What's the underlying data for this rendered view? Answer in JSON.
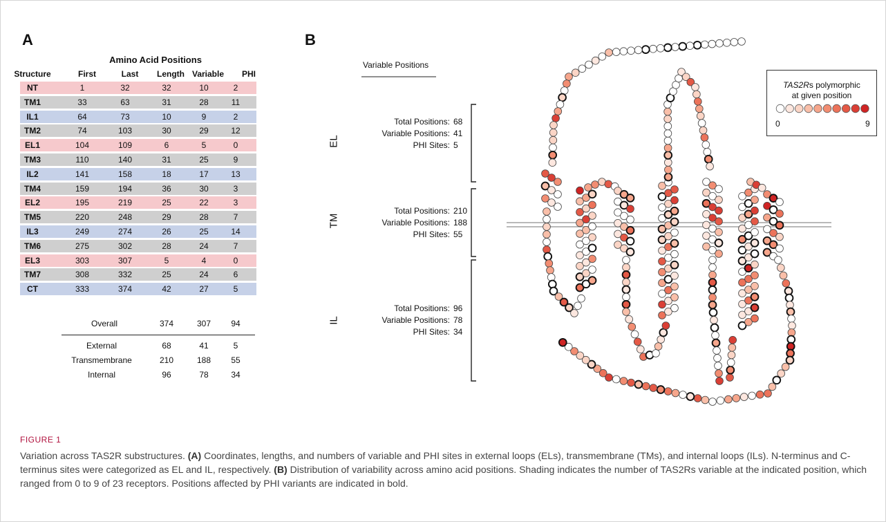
{
  "figure": {
    "panel_a_letter": "A",
    "panel_b_letter": "B"
  },
  "table": {
    "title": "Amino Acid Positions",
    "headers": [
      "Structure",
      "First",
      "Last",
      "Length",
      "Variable",
      "PHI"
    ],
    "rows": [
      {
        "structure": "NT",
        "first": "1",
        "last": "32",
        "length": "32",
        "variable": "10",
        "phi": "2",
        "color": "#f6c9cc"
      },
      {
        "structure": "TM1",
        "first": "33",
        "last": "63",
        "length": "31",
        "variable": "28",
        "phi": "11",
        "color": "#cfcfcf"
      },
      {
        "structure": "IL1",
        "first": "64",
        "last": "73",
        "length": "10",
        "variable": "9",
        "phi": "2",
        "color": "#c6d1e8"
      },
      {
        "structure": "TM2",
        "first": "74",
        "last": "103",
        "length": "30",
        "variable": "29",
        "phi": "12",
        "color": "#cfcfcf"
      },
      {
        "structure": "EL1",
        "first": "104",
        "last": "109",
        "length": "6",
        "variable": "5",
        "phi": "0",
        "color": "#f6c9cc"
      },
      {
        "structure": "TM3",
        "first": "110",
        "last": "140",
        "length": "31",
        "variable": "25",
        "phi": "9",
        "color": "#cfcfcf"
      },
      {
        "structure": "IL2",
        "first": "141",
        "last": "158",
        "length": "18",
        "variable": "17",
        "phi": "13",
        "color": "#c6d1e8"
      },
      {
        "structure": "TM4",
        "first": "159",
        "last": "194",
        "length": "36",
        "variable": "30",
        "phi": "3",
        "color": "#cfcfcf"
      },
      {
        "structure": "EL2",
        "first": "195",
        "last": "219",
        "length": "25",
        "variable": "22",
        "phi": "3",
        "color": "#f6c9cc"
      },
      {
        "structure": "TM5",
        "first": "220",
        "last": "248",
        "length": "29",
        "variable": "28",
        "phi": "7",
        "color": "#cfcfcf"
      },
      {
        "structure": "IL3",
        "first": "249",
        "last": "274",
        "length": "26",
        "variable": "25",
        "phi": "14",
        "color": "#c6d1e8"
      },
      {
        "structure": "TM6",
        "first": "275",
        "last": "302",
        "length": "28",
        "variable": "24",
        "phi": "7",
        "color": "#cfcfcf"
      },
      {
        "structure": "EL3",
        "first": "303",
        "last": "307",
        "length": "5",
        "variable": "4",
        "phi": "0",
        "color": "#f6c9cc"
      },
      {
        "structure": "TM7",
        "first": "308",
        "last": "332",
        "length": "25",
        "variable": "24",
        "phi": "6",
        "color": "#cfcfcf"
      },
      {
        "structure": "CT",
        "first": "333",
        "last": "374",
        "length": "42",
        "variable": "27",
        "phi": "5",
        "color": "#c6d1e8"
      }
    ],
    "overall": {
      "label": "Overall",
      "length": "374",
      "variable": "307",
      "phi": "94"
    },
    "summary": [
      {
        "label": "External",
        "length": "68",
        "variable": "41",
        "phi": "5"
      },
      {
        "label": "Transmembrane",
        "length": "210",
        "variable": "188",
        "phi": "55"
      },
      {
        "label": "Internal",
        "length": "96",
        "variable": "78",
        "phi": "34"
      }
    ]
  },
  "panel_b": {
    "variable_positions_title": "Variable Positions",
    "regions": [
      {
        "name": "EL",
        "total_label": "Total Positions:",
        "total": "68",
        "variable_label": "Variable Positions:",
        "variable": "41",
        "phi_label": "PHI Sites:",
        "phi": "5"
      },
      {
        "name": "TM",
        "total_label": "Total Positions:",
        "total": "210",
        "variable_label": "Variable Positions:",
        "variable": "188",
        "phi_label": "PHI Sites:",
        "phi": "55"
      },
      {
        "name": "IL",
        "total_label": "Total Positions:",
        "total": "96",
        "variable_label": "Variable Positions:",
        "variable": "78",
        "phi_label": "PHI Sites:",
        "phi": "34"
      }
    ],
    "legend": {
      "title_italic": "TAS2R",
      "title_rest": "s polymorphic",
      "title_line2": "at given position",
      "min": "0",
      "max": "9",
      "levels": [
        0,
        1,
        2,
        3,
        4,
        5,
        6,
        7,
        8,
        9
      ],
      "colors": [
        "#ffffff",
        "#fde7df",
        "#fbd5c6",
        "#f9bfa9",
        "#f6a68c",
        "#f28d72",
        "#ec735a",
        "#e45946",
        "#da3f35",
        "#cf2424"
      ]
    }
  },
  "caption": {
    "heading": "FIGURE 1",
    "text": "Variation across TAS2R substructures. (A) Coordinates, lengths, and numbers of variable and PHI sites in external loops (ELs), transmembrane (TMs), and internal loops (ILs). N-terminus and C-terminus sites were categorized as EL and IL, respectively. (B) Distribution of variability across amino acid positions. Shading indicates the number of TAS2Rs variable at the indicated position, which ranged from 0 to 9 of 23 receptors. Positions affected by PHI variants are indicated in bold."
  }
}
